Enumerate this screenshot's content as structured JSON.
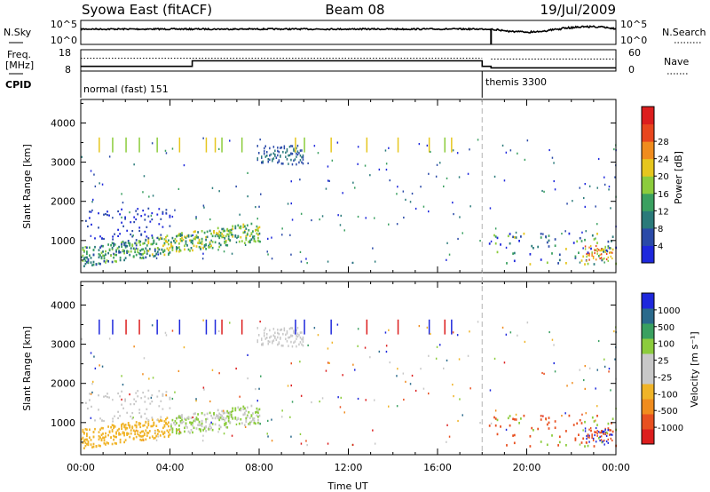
{
  "header": {
    "station": "Syowa East (fitACF)",
    "beam": "Beam 08",
    "date": "19/Jul/2009"
  },
  "nsky_panel": {
    "left_label": "N.Sky",
    "right_label": "N.Search",
    "left_ticks": [
      "10^5",
      "10^0"
    ],
    "right_ticks": [
      "10^5",
      "10^0"
    ]
  },
  "freq_panel": {
    "left_label_1": "Freq.",
    "left_label_2": "[MHz]",
    "right_label": "Nave",
    "left_ticks": [
      "18",
      "8"
    ],
    "right_ticks": [
      "60",
      "0"
    ],
    "freq_steps": [
      {
        "t0": 0,
        "t1": 5,
        "level": 0.78
      },
      {
        "t0": 5,
        "t1": 18,
        "level": 0.52
      },
      {
        "t0": 18,
        "t1": 18.4,
        "level": 0.78
      },
      {
        "t0": 18.4,
        "t1": 24,
        "level": 0.85
      }
    ],
    "nave_steps": [
      {
        "t0": 0,
        "t1": 18,
        "level": 0.4
      },
      {
        "t0": 18.4,
        "t1": 24,
        "level": 0.44
      }
    ]
  },
  "cpid": {
    "label": "CPID",
    "modes": [
      {
        "name": "normal (fast) 151",
        "start": 0,
        "end": 18
      },
      {
        "name": "themis 3300",
        "start": 18,
        "end": 24
      }
    ]
  },
  "colors": {
    "power_scale": [
      "#1e28dc",
      "#2a4aa8",
      "#2a7a7a",
      "#3aa060",
      "#8ccc3c",
      "#e6c61e",
      "#f08c1e",
      "#e8461e",
      "#dc1e1e"
    ],
    "velocity_scale": [
      "#dc1e1e",
      "#e85020",
      "#f08c1e",
      "#f0b428",
      "#c8c8c8",
      "#c8c8c8",
      "#8ccc3c",
      "#3aa060",
      "#2a6a8c",
      "#1e28dc"
    ]
  },
  "chart_data": [
    {
      "type": "heatmap",
      "name": "power",
      "ylabel": "Slant Range [km]",
      "ylim": [
        180,
        4600
      ],
      "yticks": [
        "1000",
        "2000",
        "3000",
        "4000"
      ],
      "colorbar_label": "Power [dB]",
      "colorbar_ticks": [
        "4",
        "8",
        "12",
        "16",
        "20",
        "24",
        "28"
      ],
      "xlim": [
        0,
        24
      ]
    },
    {
      "type": "heatmap",
      "name": "velocity",
      "ylabel": "Slant Range [km]",
      "ylim": [
        180,
        4600
      ],
      "yticks": [
        "1000",
        "2000",
        "3000",
        "4000"
      ],
      "colorbar_label": "Velocity [m s⁻¹]",
      "colorbar_ticks": [
        "1000",
        "500",
        "100",
        "25",
        "-25",
        "-100",
        "-500",
        "-1000"
      ],
      "xlim": [
        0,
        24
      ],
      "xlabel": "Time UT",
      "xticks": [
        "00:00",
        "04:00",
        "08:00",
        "12:00",
        "16:00",
        "20:00",
        "00:00"
      ]
    }
  ]
}
